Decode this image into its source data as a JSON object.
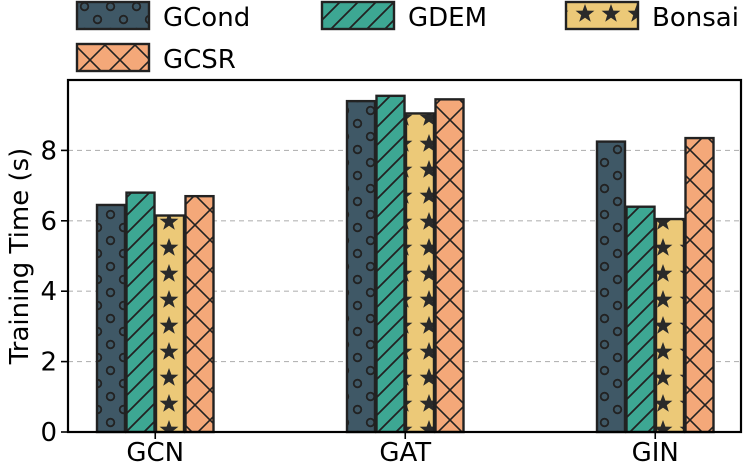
{
  "chart_data": {
    "type": "bar",
    "title": "",
    "xlabel": "",
    "ylabel": "Training Time (s)",
    "categories": [
      "GCN",
      "GAT",
      "GIN"
    ],
    "series": [
      {
        "name": "GCond",
        "values": [
          6.45,
          9.4,
          8.25
        ],
        "color": "#3f5866",
        "pattern": "circles"
      },
      {
        "name": "GDEM",
        "values": [
          6.8,
          9.55,
          6.4
        ],
        "color": "#3da793",
        "pattern": "diagonal"
      },
      {
        "name": "Bonsai",
        "values": [
          6.15,
          9.05,
          6.05
        ],
        "color": "#ecc978",
        "pattern": "stars"
      },
      {
        "name": "GCSR",
        "values": [
          6.7,
          9.45,
          8.35
        ],
        "color": "#f4a879",
        "pattern": "cross"
      }
    ],
    "ylim": [
      0,
      10
    ],
    "yticks": [
      0,
      2,
      4,
      6,
      8
    ],
    "grid": "horizontal-dashed",
    "legend_position": "top"
  }
}
